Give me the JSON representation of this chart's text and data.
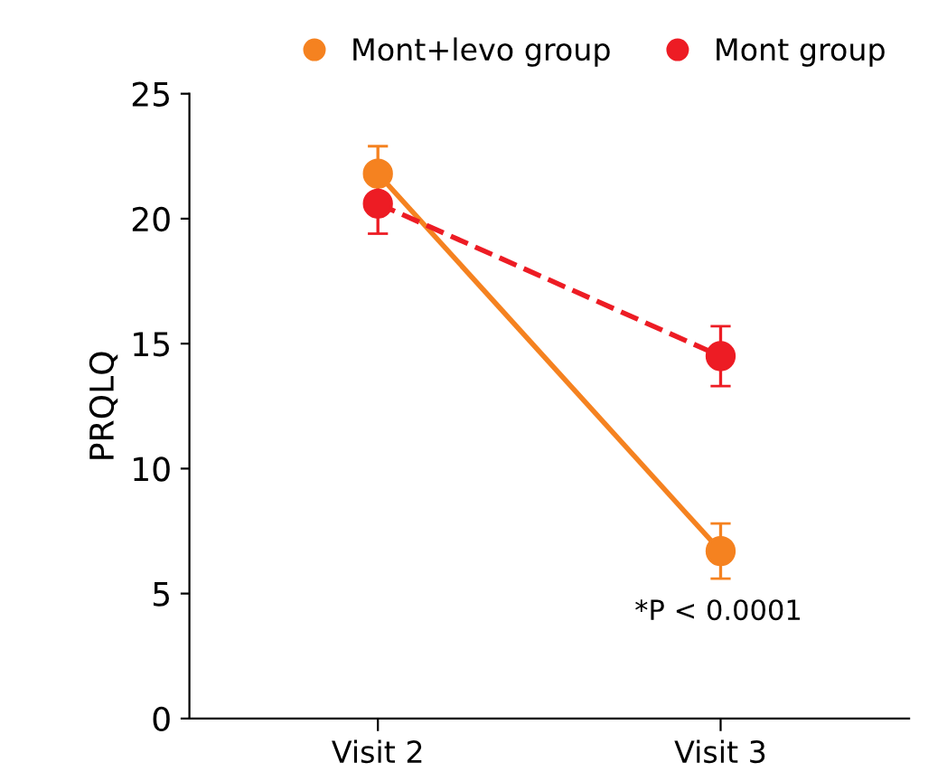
{
  "chart_data": {
    "type": "line",
    "ylabel": "PRQLQ",
    "categories": [
      "Visit 2",
      "Visit 3"
    ],
    "series": [
      {
        "name": "Mont+levo group",
        "color": "#f58220",
        "values": [
          21.8,
          6.7
        ],
        "errors": [
          1.1,
          1.1
        ],
        "line_style": "solid"
      },
      {
        "name": "Mont group",
        "color": "#ed1c24",
        "values": [
          20.6,
          14.5
        ],
        "errors": [
          1.2,
          1.2
        ],
        "line_style": "dashed"
      }
    ],
    "ylim": [
      0,
      25
    ],
    "yticks": [
      0,
      5,
      10,
      15,
      20,
      25
    ],
    "marker": "circle",
    "legend": "top",
    "grid": false,
    "annotations": [
      "*P < 0.0001"
    ]
  }
}
